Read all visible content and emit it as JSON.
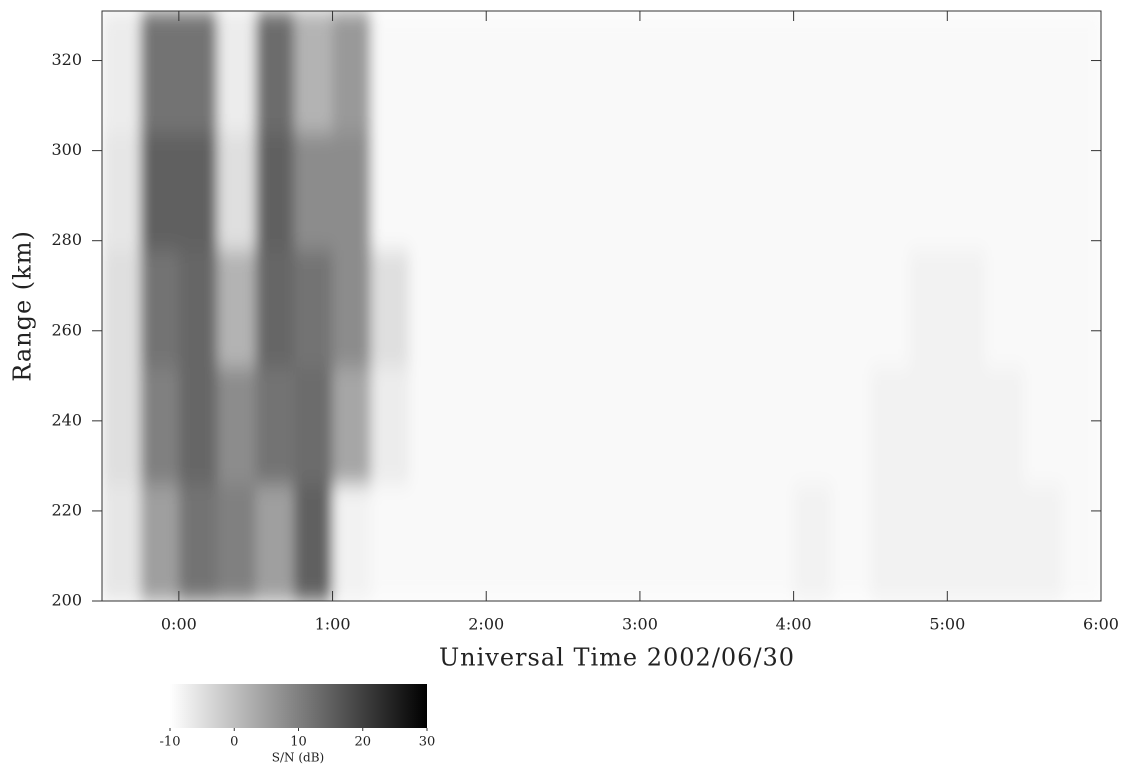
{
  "chart_data": {
    "type": "heatmap",
    "xlabel": "Universal Time 2002/06/30",
    "ylabel": "Range (km)",
    "xlim": [
      -0.5,
      6
    ],
    "ylim": [
      200,
      331
    ],
    "xticks": [
      {
        "value": 0,
        "label": "0:00"
      },
      {
        "value": 1,
        "label": "1:00"
      },
      {
        "value": 2,
        "label": "2:00"
      },
      {
        "value": 3,
        "label": "3:00"
      },
      {
        "value": 4,
        "label": "4:00"
      },
      {
        "value": 5,
        "label": "5:00"
      },
      {
        "value": 6,
        "label": "6:00"
      }
    ],
    "yticks": [
      200,
      220,
      240,
      260,
      280,
      300,
      320
    ],
    "xbins": [
      -0.5,
      -0.25,
      0,
      0.25,
      0.5,
      0.75,
      1,
      1.25,
      1.5,
      1.75,
      2,
      2.25,
      2.5,
      2.75,
      3,
      3.25,
      3.5,
      3.75,
      4,
      4.25,
      4.5,
      4.75,
      5,
      5.25,
      5.5,
      5.75,
      6
    ],
    "ybins": [
      200,
      226,
      252,
      278,
      304,
      331
    ],
    "z": [
      [
        -6,
        5,
        12,
        10,
        5,
        15,
        -8,
        -9,
        -9,
        -9,
        -9,
        -9,
        -9,
        -9,
        -9,
        -9,
        -9,
        -9,
        -8,
        -9,
        -8,
        -8,
        -8,
        -8,
        -8,
        -9
      ],
      [
        -5,
        10,
        14,
        8,
        12,
        13,
        4,
        -7,
        -9,
        -9,
        -9,
        -9,
        -9,
        -9,
        -9,
        -9,
        -9,
        -9,
        -9,
        -9,
        -8,
        -8,
        -8,
        -8,
        -9,
        -9
      ],
      [
        -5,
        12,
        14,
        2,
        14,
        12,
        8,
        -5,
        -9,
        -9,
        -9,
        -9,
        -9,
        -9,
        -9,
        -9,
        -9,
        -9,
        -9,
        -9,
        -9,
        -8,
        -8,
        -9,
        -9,
        -9
      ],
      [
        -6,
        15,
        15,
        -5,
        15,
        8,
        8,
        -9,
        -9,
        -9,
        -9,
        -9,
        -9,
        -9,
        -9,
        -9,
        -9,
        -9,
        -9,
        -9,
        -9,
        -9,
        -9,
        -9,
        -9,
        -9
      ],
      [
        -7,
        12,
        12,
        -7,
        13,
        2,
        6,
        -9,
        -9,
        -9,
        -9,
        -9,
        -9,
        -9,
        -9,
        -9,
        -9,
        -9,
        -9,
        -9,
        -9,
        -9,
        -9,
        -9,
        -9,
        -9
      ]
    ],
    "colorbar": {
      "label": "S/N (dB)",
      "lim": [
        -10,
        30
      ],
      "ticks": [
        -10,
        0,
        10,
        20,
        30
      ]
    }
  }
}
